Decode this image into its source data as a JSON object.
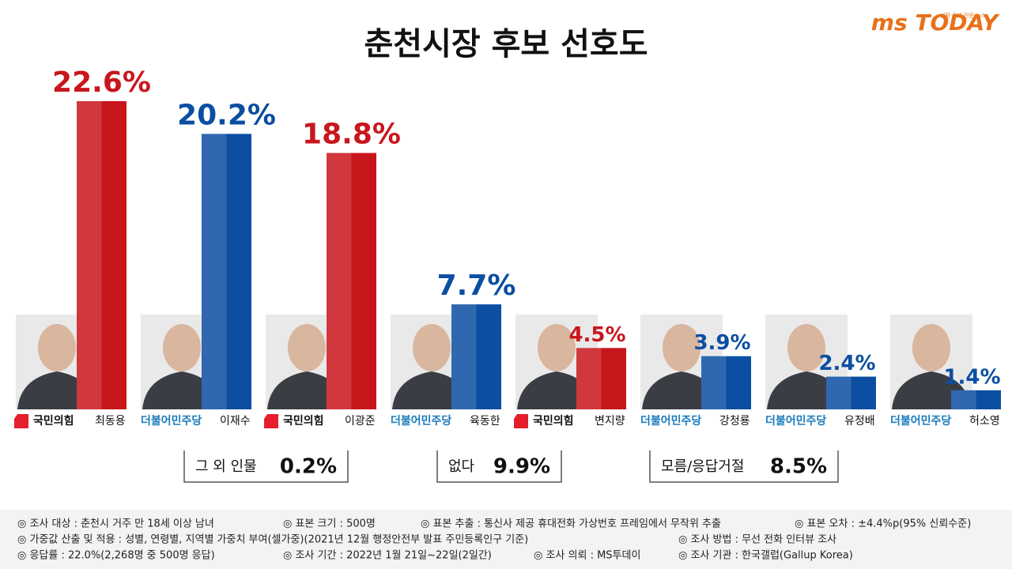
{
  "chart_data": {
    "type": "bar",
    "title": "춘천시장 후보 선호도",
    "logo": {
      "brand": "ms TODAY",
      "tagline": "생활 경제 전문 뉴스"
    },
    "categories": [
      "최동용",
      "이재수",
      "이광준",
      "육동한",
      "변지량",
      "강청룡",
      "유정배",
      "허소영"
    ],
    "parties": [
      "국민의힘",
      "더불어민주당",
      "국민의힘",
      "더불어민주당",
      "국민의힘",
      "더불어민주당",
      "더불어민주당",
      "더불어민주당"
    ],
    "values": [
      22.6,
      20.2,
      18.8,
      7.7,
      4.5,
      3.9,
      2.4,
      1.4
    ],
    "value_labels": [
      "22.6%",
      "20.2%",
      "18.8%",
      "7.7%",
      "4.5%",
      "3.9%",
      "2.4%",
      "1.4%"
    ],
    "colors": [
      "#c8161d",
      "#0b4ea2",
      "#c8161d",
      "#0b4ea2",
      "#c8161d",
      "#0b4ea2",
      "#0b4ea2",
      "#0b4ea2"
    ],
    "others": [
      {
        "label": "그 외 인물",
        "value": "0.2%"
      },
      {
        "label": "없다",
        "value": "9.9%"
      },
      {
        "label": "모름/응답거절",
        "value": "8.5%"
      }
    ],
    "notes": [
      [
        "◎ 조사 대상 : 춘천시 거주 만 18세 이상 남녀",
        "◎ 표본 크기 : 500명",
        "◎ 표본 추출 : 통신사 제공 휴대전화 가상번호 프레임에서 무작위 추출",
        "◎ 표본 오차 : ±4.4%p(95% 신뢰수준)"
      ],
      [
        "◎ 가중값 산출 및 적용 : 성별, 연령별, 지역별 가중치 부여(셀가중)(2021년 12월 행정안전부 발표 주민등록인구 기준)",
        "◎ 조사 방법 : 무선 전화 인터뷰 조사"
      ],
      [
        "◎ 응답률 : 22.0%(2,268명 중 500명 응답)",
        "◎ 조사 기간 : 2022년 1월 21일~22일(2일간)",
        "◎ 조사 의뢰 : MS투데이",
        "◎ 조사 기관 : 한국갤럽(Gallup Korea)"
      ]
    ]
  }
}
